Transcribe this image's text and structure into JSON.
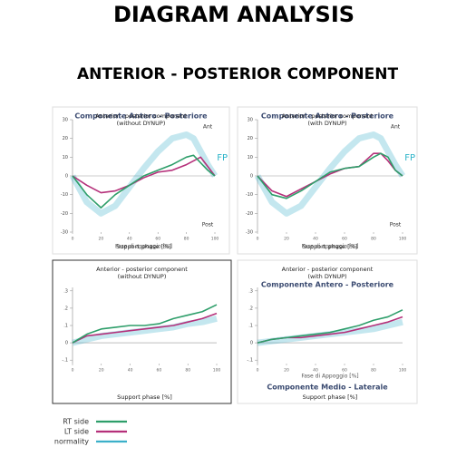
{
  "header": {
    "title": "DIAGRAM ANALYSIS",
    "subtitle": "ANTERIOR - POSTERIOR COMPONENT"
  },
  "chart_data": [
    {
      "type": "line",
      "original_title": "Componente Antero - Posteriore",
      "title": "Anterior - posterior component",
      "subtitle": "(without DYNUP)",
      "original_xlabel": "Fase di appoggio [%]",
      "xlabel": "Support phase [%]",
      "annotations": [
        "Ant",
        "Post",
        "FP"
      ],
      "x": [
        0,
        10,
        20,
        30,
        40,
        50,
        60,
        70,
        80,
        85,
        90,
        95,
        100
      ],
      "series": [
        {
          "name": "RT side",
          "color": "#2e9e6a",
          "values": [
            0,
            -10,
            -17,
            -10,
            -5,
            0,
            3,
            6,
            10,
            11,
            7,
            3,
            0
          ]
        },
        {
          "name": "LT side",
          "color": "#b5307a",
          "values": [
            0,
            -5,
            -9,
            -8,
            -5,
            -1,
            2,
            3,
            6,
            8,
            10,
            5,
            0
          ]
        },
        {
          "name": "normality",
          "color": "#3bb0c9",
          "values": [
            0,
            -14,
            -20,
            -16,
            -6,
            4,
            13,
            20,
            22,
            20,
            13,
            6,
            0
          ]
        }
      ],
      "xlim": [
        0,
        100
      ],
      "xticks": [
        0,
        20,
        40,
        60,
        80,
        100
      ],
      "ylim": [
        -30,
        30
      ],
      "yticks": [
        -30,
        -20,
        -10,
        0,
        10,
        20,
        30
      ]
    },
    {
      "type": "line",
      "original_title": "Componente Antero - Posteriore",
      "title": "Anterior - posterior component",
      "subtitle": "(with DYNUP)",
      "original_xlabel": "Fase di appoggio [%]",
      "xlabel": "Support phase [%]",
      "annotations": [
        "Ant",
        "Post",
        "FP"
      ],
      "x": [
        0,
        10,
        20,
        30,
        40,
        50,
        60,
        70,
        80,
        85,
        90,
        95,
        100
      ],
      "series": [
        {
          "name": "RT side",
          "color": "#2e9e6a",
          "values": [
            0,
            -10,
            -12,
            -8,
            -3,
            2,
            4,
            5,
            10,
            12,
            10,
            3,
            0
          ]
        },
        {
          "name": "LT side",
          "color": "#b5307a",
          "values": [
            0,
            -8,
            -11,
            -7,
            -3,
            1,
            4,
            5,
            12,
            12,
            8,
            3,
            0
          ]
        },
        {
          "name": "normality",
          "color": "#3bb0c9",
          "values": [
            0,
            -14,
            -20,
            -16,
            -6,
            4,
            13,
            20,
            22,
            20,
            13,
            6,
            0
          ]
        }
      ],
      "xlim": [
        0,
        100
      ],
      "xticks": [
        0,
        20,
        40,
        60,
        80,
        100
      ],
      "ylim": [
        -30,
        30
      ],
      "yticks": [
        -30,
        -20,
        -10,
        0,
        10,
        20,
        30
      ]
    },
    {
      "type": "line",
      "title": "Anterior - posterior component",
      "subtitle": "(without DYNUP)",
      "xlabel": "Support phase [%]",
      "x": [
        0,
        10,
        20,
        30,
        40,
        50,
        60,
        70,
        80,
        90,
        100
      ],
      "series": [
        {
          "name": "RT side",
          "color": "#2e9e6a",
          "values": [
            0,
            0.05,
            0.08,
            0.09,
            0.1,
            0.1,
            0.11,
            0.14,
            0.16,
            0.18,
            0.22
          ]
        },
        {
          "name": "LT side",
          "color": "#b5307a",
          "values": [
            0,
            0.04,
            0.05,
            0.06,
            0.07,
            0.08,
            0.09,
            0.1,
            0.12,
            0.14,
            0.17
          ]
        },
        {
          "name": "normality",
          "color": "#3bb0c9",
          "values": [
            0,
            0.02,
            0.04,
            0.05,
            0.06,
            0.07,
            0.08,
            0.09,
            0.11,
            0.12,
            0.14
          ]
        }
      ],
      "xlim": [
        0,
        100
      ],
      "xticks": [
        0,
        20,
        40,
        60,
        80,
        100
      ],
      "ylim": [
        -0.12,
        0.32
      ],
      "yticks": [
        {
          "value": -0.1,
          "label": "-.1"
        },
        0,
        {
          "value": 0.1,
          "label": ".1"
        },
        {
          "value": 0.2,
          "label": ".2"
        },
        {
          "value": 0.3,
          "label": ".3"
        }
      ]
    },
    {
      "type": "line",
      "title": "Anterior - posterior component",
      "subtitle": "(with DYNUP)",
      "original_title": "Componente Antero - Posteriore",
      "original_xlabel": "Fase di Appoggio [%]",
      "annotations": [
        "Componente Medio - Laterale"
      ],
      "xlabel": "Support phase [%]",
      "x": [
        0,
        10,
        20,
        30,
        40,
        50,
        60,
        70,
        80,
        90,
        100
      ],
      "series": [
        {
          "name": "RT side",
          "color": "#2e9e6a",
          "values": [
            0,
            0.02,
            0.03,
            0.04,
            0.05,
            0.06,
            0.08,
            0.1,
            0.13,
            0.15,
            0.19
          ]
        },
        {
          "name": "LT side",
          "color": "#b5307a",
          "values": [
            0,
            0.02,
            0.03,
            0.03,
            0.04,
            0.05,
            0.06,
            0.08,
            0.1,
            0.12,
            0.15
          ]
        },
        {
          "name": "normality",
          "color": "#3bb0c9",
          "values": [
            0,
            0.01,
            0.02,
            0.03,
            0.04,
            0.05,
            0.06,
            0.07,
            0.08,
            0.1,
            0.12
          ]
        }
      ],
      "xlim": [
        0,
        100
      ],
      "xticks": [
        0,
        20,
        40,
        60,
        80,
        100
      ],
      "ylim": [
        -0.12,
        0.32
      ],
      "yticks": [
        {
          "value": -0.1,
          "label": "-.1"
        },
        0,
        {
          "value": 0.1,
          "label": ".1"
        },
        {
          "value": 0.2,
          "label": ".2"
        },
        {
          "value": 0.3,
          "label": ".3"
        }
      ]
    }
  ]
}
